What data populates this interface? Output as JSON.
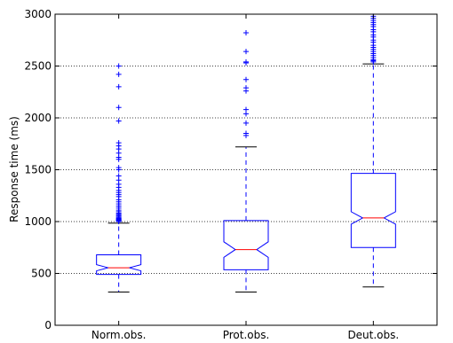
{
  "chart_data": {
    "type": "box",
    "title": "",
    "xlabel": "",
    "ylabel": "Response time (ms)",
    "ylim": [
      0,
      3000
    ],
    "yticks": [
      0,
      500,
      1000,
      1500,
      2000,
      2500,
      3000
    ],
    "ytick_labels": [
      "0",
      "500",
      "1000",
      "1500",
      "2000",
      "2500",
      "3000"
    ],
    "grid": "horizontal dotted",
    "notched": true,
    "colors": {
      "box": "#0000ff",
      "median": "#ff0000",
      "whisker": "#0000ff",
      "cap": "#000000",
      "flier": "#0000ff",
      "grid": "#000000"
    },
    "categories": [
      "Norm.obs.",
      "Prot.obs.",
      "Deut.obs."
    ],
    "boxes": [
      {
        "label": "Norm.obs.",
        "whisker_low": 320,
        "q1": 490,
        "median": 555,
        "q3": 680,
        "whisker_high": 985,
        "notch_low": 525,
        "notch_high": 585,
        "outliers": [
          1000,
          1005,
          1010,
          1015,
          1020,
          1025,
          1030,
          1040,
          1050,
          1060,
          1070,
          1080,
          1095,
          1110,
          1130,
          1150,
          1170,
          1190,
          1210,
          1240,
          1260,
          1280,
          1300,
          1330,
          1360,
          1400,
          1440,
          1500,
          1520,
          1600,
          1620,
          1660,
          1700,
          1730,
          1760,
          1970,
          2100,
          2300,
          2420,
          2500
        ]
      },
      {
        "label": "Prot.obs.",
        "whisker_low": 320,
        "q1": 535,
        "median": 730,
        "q3": 1010,
        "whisker_high": 1720,
        "notch_low": 655,
        "notch_high": 805,
        "outliers": [
          1830,
          1850,
          1950,
          2040,
          2080,
          2260,
          2290,
          2370,
          2530,
          2540,
          2640,
          2820
        ]
      },
      {
        "label": "Deut.obs.",
        "whisker_low": 370,
        "q1": 750,
        "median": 1035,
        "q3": 1465,
        "whisker_high": 2520,
        "notch_low": 975,
        "notch_high": 1095,
        "outliers": [
          2540,
          2550,
          2560,
          2580,
          2600,
          2620,
          2640,
          2660,
          2680,
          2700,
          2730,
          2750,
          2780,
          2800,
          2830,
          2850,
          2880,
          2900,
          2920,
          2940,
          2960,
          2980
        ]
      }
    ]
  }
}
